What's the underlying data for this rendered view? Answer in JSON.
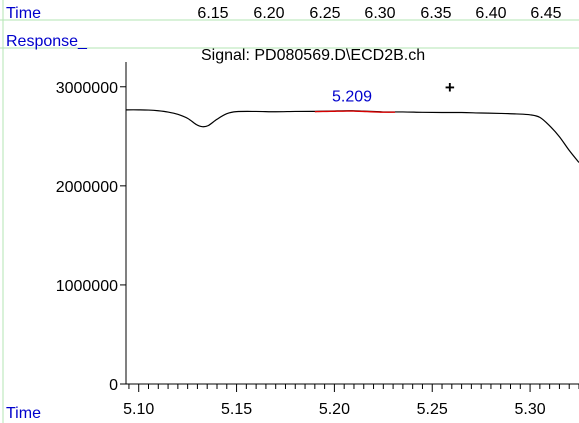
{
  "header": {
    "time_label": "Time",
    "response_label": "Response_",
    "signal_title": "Signal: PD080569.D\\ECD2B.ch",
    "top_ticks": [
      "6.15",
      "6.20",
      "6.25",
      "6.30",
      "6.35",
      "6.40",
      "6.45"
    ]
  },
  "footer": {
    "time_label": "Time"
  },
  "colors": {
    "frame": "#b3e6b3",
    "label_blue": "#0000cc",
    "peak_red": "#d60000",
    "trace": "#000000"
  },
  "chart_data": {
    "type": "line",
    "title": "Signal: PD080569.D\\ECD2B.ch",
    "xlabel": "Time",
    "ylabel": "Response_",
    "xlim": [
      5.0935,
      5.325
    ],
    "ylim": [
      0,
      3250000
    ],
    "x_ticks": [
      5.1,
      5.15,
      5.2,
      5.25,
      5.3
    ],
    "x_tick_labels": [
      "5.10",
      "5.15",
      "5.20",
      "5.25",
      "5.30"
    ],
    "y_ticks": [
      0,
      1000000,
      2000000,
      3000000
    ],
    "y_tick_labels": [
      "0",
      "1000000",
      "2000000",
      "3000000"
    ],
    "secondary_x_tick_labels": [
      "6.15",
      "6.20",
      "6.25",
      "6.30",
      "6.35",
      "6.40",
      "6.45"
    ],
    "series": [
      {
        "x": [
          5.0935,
          5.1,
          5.105,
          5.11,
          5.115,
          5.12,
          5.125,
          5.1295,
          5.1325,
          5.1355,
          5.14,
          5.145,
          5.15,
          5.16,
          5.17,
          5.18,
          5.19,
          5.2,
          5.209,
          5.215,
          5.225,
          5.235,
          5.245,
          5.255,
          5.265,
          5.275,
          5.285,
          5.293,
          5.3,
          5.305,
          5.31,
          5.315,
          5.32,
          5.325
        ],
        "y": [
          2767000,
          2767000,
          2765000,
          2758000,
          2745000,
          2722000,
          2681000,
          2618000,
          2597000,
          2608000,
          2672000,
          2728000,
          2749000,
          2751000,
          2748000,
          2751000,
          2752000,
          2756000,
          2758000,
          2754000,
          2746000,
          2746000,
          2742000,
          2740000,
          2740000,
          2735000,
          2731000,
          2726000,
          2717000,
          2691000,
          2606000,
          2496000,
          2358000,
          2235000
        ]
      }
    ],
    "peak": {
      "label": "5.209",
      "x": 5.209,
      "x_start": 5.19,
      "x_end": 5.231
    },
    "cursor": {
      "symbol": "+",
      "x": 5.259,
      "y": 3000000
    }
  }
}
